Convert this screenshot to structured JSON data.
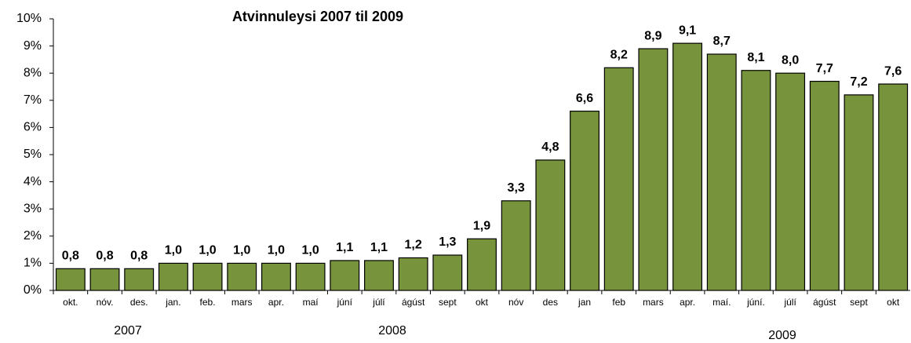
{
  "chart_data": {
    "type": "bar",
    "title": "Atvinnuleysi 2007 til 2009",
    "categories": [
      "okt.",
      "nóv.",
      "des.",
      "jan.",
      "feb.",
      "mars",
      "apr.",
      "maí",
      "júní",
      "júlí",
      "ágúst",
      "sept",
      "okt",
      "nóv",
      "des",
      "jan",
      "feb",
      "mars",
      "apr.",
      "maí.",
      "júní.",
      "júlí",
      "ágúst",
      "sept",
      "okt"
    ],
    "values": [
      0.8,
      0.8,
      0.8,
      1.0,
      1.0,
      1.0,
      1.0,
      1.0,
      1.1,
      1.1,
      1.2,
      1.3,
      1.9,
      3.3,
      4.8,
      6.6,
      8.2,
      8.9,
      9.1,
      8.7,
      8.1,
      8.0,
      7.7,
      7.2,
      7.6
    ],
    "value_labels": [
      "0,8",
      "0,8",
      "0,8",
      "1,0",
      "1,0",
      "1,0",
      "1,0",
      "1,0",
      "1,1",
      "1,1",
      "1,2",
      "1,3",
      "1,9",
      "3,3",
      "4,8",
      "6,6",
      "8,2",
      "8,9",
      "9,1",
      "8,7",
      "8,1",
      "8,0",
      "7,7",
      "7,2",
      "7,6"
    ],
    "color": "#77933c",
    "ylim": [
      0,
      10
    ],
    "yticks": [
      {
        "value": 0,
        "label": "0%"
      },
      {
        "value": 1,
        "label": "1%"
      },
      {
        "value": 2,
        "label": "2%"
      },
      {
        "value": 3,
        "label": "3%"
      },
      {
        "value": 4,
        "label": "4%"
      },
      {
        "value": 5,
        "label": "5%"
      },
      {
        "value": 6,
        "label": "6%"
      },
      {
        "value": 7,
        "label": "7%"
      },
      {
        "value": 8,
        "label": "8%"
      },
      {
        "value": 9,
        "label": "9%"
      },
      {
        "value": 10,
        "label": "10%"
      }
    ],
    "year_labels": [
      "2007",
      "2008",
      "2009"
    ],
    "grid": false
  }
}
